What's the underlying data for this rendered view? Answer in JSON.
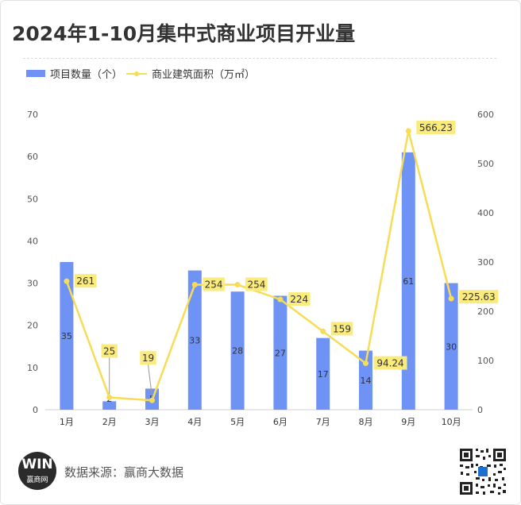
{
  "title": "2024年1-10月集中式商业项目开业量",
  "source": "数据来源：赢商大数据",
  "logo": {
    "mark": "WIN",
    "text": "赢商网"
  },
  "colors": {
    "bar": "#6f93f5",
    "line": "#f7dc55",
    "label_bg": "#fbeb7d",
    "text": "#333333"
  },
  "chart_data": {
    "type": "bar",
    "categories": [
      "1月",
      "2月",
      "3月",
      "4月",
      "5月",
      "6月",
      "7月",
      "8月",
      "9月",
      "10月"
    ],
    "series": [
      {
        "name": "项目数量（个）",
        "type": "bar",
        "axis": "left",
        "values": [
          35,
          2,
          5,
          33,
          28,
          27,
          17,
          14,
          61,
          30
        ]
      },
      {
        "name": "商业建筑面积（万㎡）",
        "type": "line",
        "axis": "right",
        "values": [
          261,
          25,
          19,
          254,
          254,
          224,
          159,
          94.24,
          566.23,
          225.63
        ],
        "labels": [
          "261",
          "25",
          "19",
          "254",
          "254",
          "224",
          "159",
          "94.24",
          "566.23",
          "225.63"
        ]
      }
    ],
    "y_left": {
      "min": 0,
      "max": 70,
      "ticks": [
        0,
        10,
        20,
        30,
        40,
        50,
        60,
        70
      ]
    },
    "y_right": {
      "min": 0,
      "max": 600,
      "ticks": [
        0,
        100,
        200,
        300,
        400,
        500,
        600
      ]
    },
    "grid": false,
    "legend": "top-left"
  }
}
